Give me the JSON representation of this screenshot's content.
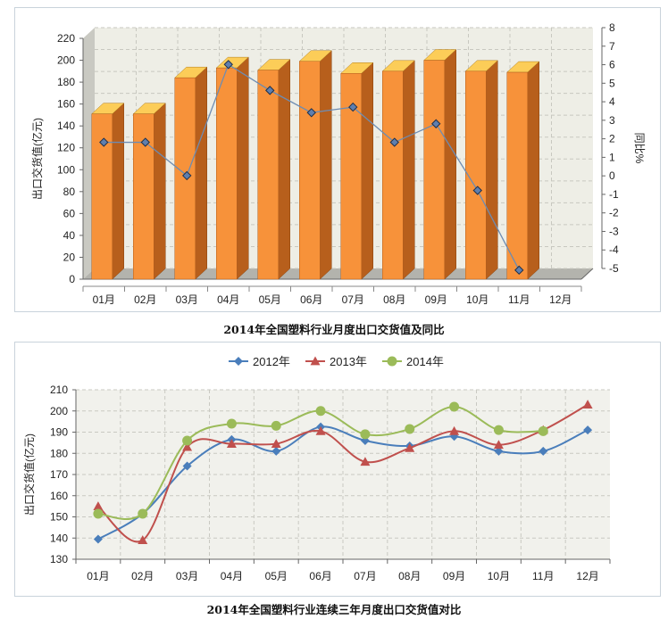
{
  "chart_data": [
    {
      "type": "bar",
      "title": "2014年全国塑料行业月度出口交货值及同比",
      "categories": [
        "01月",
        "02月",
        "03月",
        "04月",
        "05月",
        "06月",
        "07月",
        "08月",
        "09月",
        "10月",
        "11月",
        "12月"
      ],
      "ylabel": "出口交货值(亿元)",
      "y2label": "同比%",
      "ylim": [
        0,
        220
      ],
      "yticks": [
        0,
        20,
        40,
        60,
        80,
        100,
        120,
        140,
        160,
        180,
        200,
        220
      ],
      "y2lim": [
        -5,
        8
      ],
      "y2ticks": [
        -5,
        -4,
        -3,
        -2,
        -1,
        0,
        1,
        2,
        3,
        4,
        5,
        6,
        7,
        8
      ],
      "grid": true,
      "style": "3d",
      "series": [
        {
          "type": "bar",
          "values": [
            151,
            151,
            184,
            193,
            191,
            199,
            188,
            190,
            200,
            190,
            189,
            null
          ],
          "color": "#f7923a"
        },
        {
          "type": "line",
          "axis": "y2",
          "values": [
            2.1,
            2.1,
            0.3,
            6.3,
            4.9,
            3.7,
            4.0,
            2.1,
            3.1,
            -0.5,
            -4.8,
            null
          ],
          "color": "#6d8cb2"
        }
      ]
    },
    {
      "type": "line",
      "title": "2014年全国塑料行业连续三年月度出口交货值对比",
      "categories": [
        "01月",
        "02月",
        "03月",
        "04月",
        "05月",
        "06月",
        "07月",
        "08月",
        "09月",
        "10月",
        "11月",
        "12月"
      ],
      "ylabel": "出口交货值(亿元)",
      "ylim": [
        130,
        210
      ],
      "yticks": [
        130,
        140,
        150,
        160,
        170,
        180,
        190,
        200,
        210
      ],
      "grid": true,
      "legend": "top-center",
      "series": [
        {
          "name": "2012年",
          "values": [
            139.5,
            151.5,
            174,
            186.5,
            181,
            192.5,
            186,
            183.5,
            188,
            181,
            181,
            191
          ],
          "color": "#4a7ebb",
          "marker": "diamond"
        },
        {
          "name": "2013年",
          "values": [
            155,
            139,
            183,
            184.5,
            184.5,
            190.5,
            176,
            182.5,
            190.5,
            184,
            191,
            203
          ],
          "color": "#c0504d",
          "marker": "triangle"
        },
        {
          "name": "2014年",
          "values": [
            151.5,
            151.5,
            186,
            194,
            193,
            200,
            189,
            191.5,
            202,
            191,
            190.5,
            null
          ],
          "color": "#9bbb59",
          "marker": "circle"
        }
      ]
    }
  ]
}
